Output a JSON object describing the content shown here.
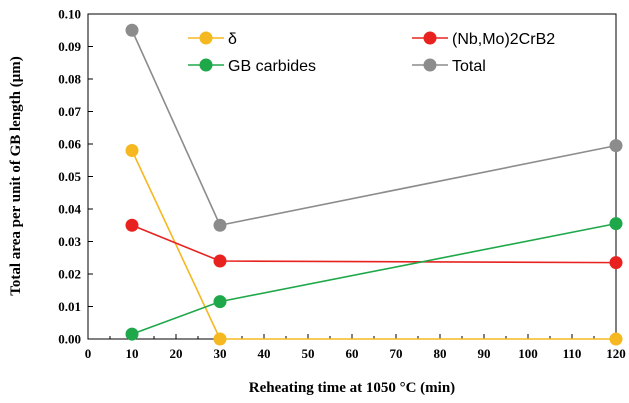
{
  "chart_data": {
    "type": "line",
    "title": "",
    "xlabel": "Reheating time at 1050 °C (min)",
    "ylabel": "Total area per unit of GB length (μm)",
    "xlim": [
      0,
      120
    ],
    "ylim": [
      0,
      0.1
    ],
    "x_ticks": [
      "0",
      "10",
      "20",
      "30",
      "40",
      "50",
      "60",
      "70",
      "80",
      "90",
      "100",
      "110",
      "120"
    ],
    "y_ticks": [
      "0.00",
      "0.01",
      "0.02",
      "0.03",
      "0.04",
      "0.05",
      "0.06",
      "0.07",
      "0.08",
      "0.09",
      "0.10"
    ],
    "grid": false,
    "legend_position": "top",
    "x": [
      10,
      30,
      120
    ],
    "series": [
      {
        "name": "δ",
        "color": "#f5b820",
        "values": [
          0.058,
          0.0,
          0.0
        ]
      },
      {
        "name": "(Nb,Mo)2CrB2",
        "color": "#e8231f",
        "values": [
          0.035,
          0.024,
          0.0235
        ]
      },
      {
        "name": "GB carbides",
        "color": "#1fa84a",
        "values": [
          0.0015,
          0.0115,
          0.0355
        ]
      },
      {
        "name": "Total",
        "color": "#8c8c8c",
        "values": [
          0.095,
          0.035,
          0.0595
        ]
      }
    ]
  }
}
